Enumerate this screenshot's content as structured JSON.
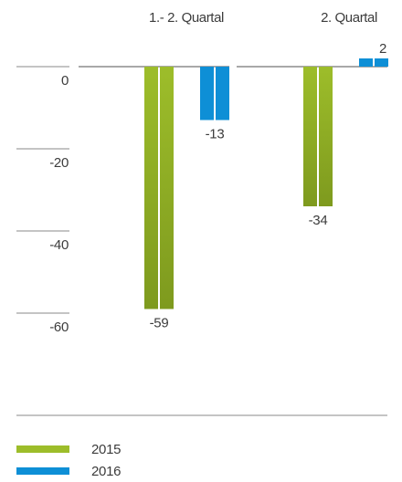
{
  "chart_data": {
    "type": "bar",
    "groups": [
      "1.- 2. Quartal",
      "2. Quartal"
    ],
    "series": [
      {
        "name": "2015",
        "values": [
          -59,
          -34
        ],
        "labels": [
          "-59",
          "-34"
        ],
        "color": "#9dbd2a",
        "color_dark": "#7e9a1e"
      },
      {
        "name": "2016",
        "values": [
          -13,
          2
        ],
        "labels": [
          "-13",
          "2"
        ],
        "color": "#0e8fd6",
        "color_dark": "#0e8fd6"
      }
    ],
    "yticks": [
      0,
      -20,
      -40,
      -60
    ],
    "ytick_labels": [
      "0",
      "-20",
      "-40",
      "-60"
    ],
    "ylim": [
      -70,
      5
    ],
    "grid": false,
    "legend_position": "bottom-left"
  }
}
